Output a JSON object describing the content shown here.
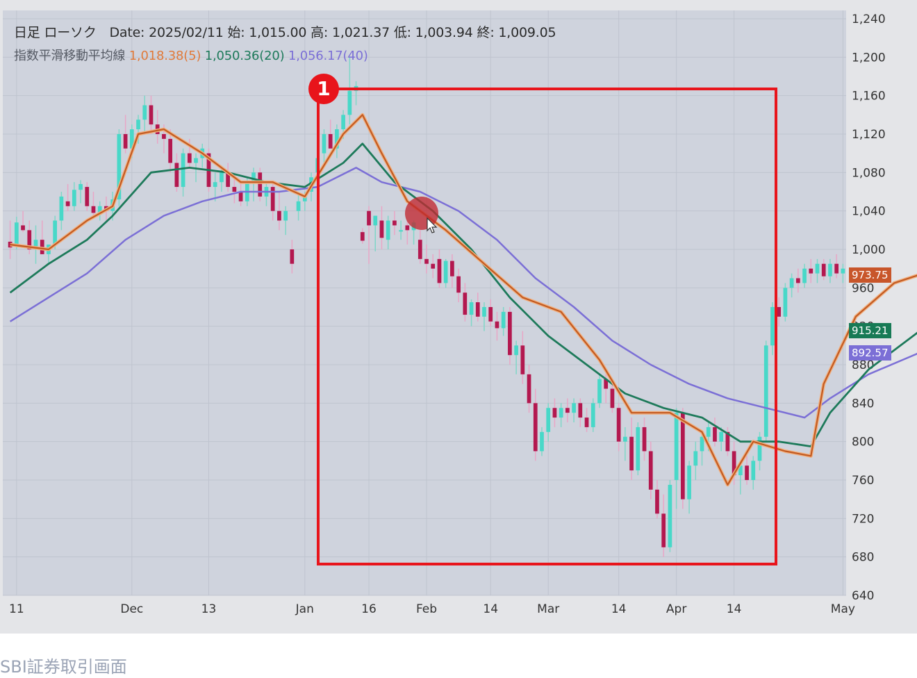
{
  "legend": {
    "line1": "日足 ローソク　Date: 2025/02/11 始: 1,015.00 高: 1,021.37 低: 1,003.94 終: 1,009.05",
    "ma_title": "指数平滑移動平均線",
    "ma5": "1,018.38(5)",
    "ma20": "1,050.36(20)",
    "ma40": "1,056.17(40)"
  },
  "badges": {
    "ma5_last": "973.75",
    "ma20_last": "915.21",
    "ma40_last": "892.57"
  },
  "annotation": {
    "number": "1"
  },
  "caption": "SBI証券取引画面",
  "colors": {
    "ma5": "#e07a3a",
    "ma20": "#1d7a5a",
    "ma40": "#7b6fd6",
    "up": "#48d8c8",
    "down": "#b3184f",
    "highlight": "#e8141b"
  },
  "chart_data": {
    "type": "candlestick",
    "ylim": [
      640,
      1240
    ],
    "y_ticks": [
      "1,240",
      "1,200",
      "1,160",
      "1,120",
      "1,080",
      "1,040",
      "1,000",
      "960",
      "920",
      "880",
      "840",
      "800",
      "760",
      "720",
      "680",
      "640"
    ],
    "x_ticks": [
      "11",
      "Dec",
      "13",
      "Jan",
      "16",
      "Feb",
      "14",
      "Mar",
      "14",
      "Apr",
      "14",
      "May"
    ],
    "ohlc": [
      [
        1008,
        1030,
        990,
        1002
      ],
      [
        1005,
        1034,
        1000,
        1028
      ],
      [
        1025,
        1040,
        1018,
        1020
      ],
      [
        1020,
        1030,
        995,
        1000
      ],
      [
        1002,
        1025,
        985,
        1010
      ],
      [
        1010,
        1030,
        995,
        995
      ],
      [
        995,
        1005,
        985,
        1005
      ],
      [
        1005,
        1035,
        1000,
        1030
      ],
      [
        1030,
        1060,
        1020,
        1055
      ],
      [
        1050,
        1068,
        1040,
        1045
      ],
      [
        1045,
        1070,
        1040,
        1062
      ],
      [
        1062,
        1072,
        1048,
        1068
      ],
      [
        1065,
        1070,
        1040,
        1045
      ],
      [
        1045,
        1060,
        1035,
        1038
      ],
      [
        1038,
        1050,
        1030,
        1045
      ],
      [
        1045,
        1055,
        1030,
        1040
      ],
      [
        1040,
        1060,
        1030,
        1052
      ],
      [
        1052,
        1125,
        1045,
        1120
      ],
      [
        1120,
        1140,
        1100,
        1105
      ],
      [
        1105,
        1130,
        1095,
        1125
      ],
      [
        1125,
        1140,
        1110,
        1135
      ],
      [
        1135,
        1160,
        1120,
        1150
      ],
      [
        1150,
        1160,
        1120,
        1130
      ],
      [
        1130,
        1145,
        1110,
        1120
      ],
      [
        1120,
        1130,
        1100,
        1115
      ],
      [
        1115,
        1125,
        1080,
        1090
      ],
      [
        1090,
        1100,
        1060,
        1065
      ],
      [
        1065,
        1105,
        1055,
        1100
      ],
      [
        1100,
        1115,
        1085,
        1090
      ],
      [
        1090,
        1100,
        1070,
        1095
      ],
      [
        1095,
        1110,
        1085,
        1105
      ],
      [
        1100,
        1105,
        1060,
        1065
      ],
      [
        1065,
        1080,
        1050,
        1070
      ],
      [
        1070,
        1085,
        1060,
        1080
      ],
      [
        1080,
        1090,
        1060,
        1065
      ],
      [
        1065,
        1075,
        1048,
        1060
      ],
      [
        1060,
        1072,
        1045,
        1050
      ],
      [
        1050,
        1075,
        1045,
        1070
      ],
      [
        1070,
        1085,
        1050,
        1080
      ],
      [
        1080,
        1085,
        1050,
        1055
      ],
      [
        1055,
        1070,
        1045,
        1065
      ],
      [
        1065,
        1070,
        1030,
        1040
      ],
      [
        1040,
        1060,
        1020,
        1030
      ],
      [
        1030,
        1045,
        1015,
        1040
      ],
      [
        1000,
        1010,
        975,
        985
      ],
      [
        1040,
        1060,
        1030,
        1050
      ],
      [
        1050,
        1060,
        1040,
        1055
      ],
      [
        1060,
        1080,
        1050,
        1075
      ],
      [
        1080,
        1100,
        1070,
        1095
      ],
      [
        1100,
        1125,
        1090,
        1120
      ],
      [
        1120,
        1135,
        1110,
        1105
      ],
      [
        1105,
        1130,
        1095,
        1125
      ],
      [
        1125,
        1145,
        1115,
        1140
      ],
      [
        1140,
        1200,
        1130,
        1165
      ],
      [
        1165,
        1175,
        1150,
        1170
      ],
      [
        1018,
        1022,
        1006,
        1009
      ],
      [
        1040,
        1045,
        985,
        1025
      ],
      [
        1025,
        1035,
        998,
        1035
      ],
      [
        1030,
        1045,
        1000,
        1012
      ],
      [
        1010,
        1035,
        1000,
        1030
      ],
      [
        1030,
        1040,
        1015,
        1025
      ],
      [
        1020,
        1030,
        1010,
        1020
      ],
      [
        1025,
        1030,
        1005,
        1020
      ],
      [
        1020,
        1030,
        1005,
        1028
      ],
      [
        1010,
        1020,
        985,
        990
      ],
      [
        990,
        1005,
        975,
        985
      ],
      [
        985,
        995,
        970,
        980
      ],
      [
        990,
        1000,
        960,
        965
      ],
      [
        965,
        990,
        960,
        988
      ],
      [
        988,
        995,
        960,
        972
      ],
      [
        972,
        980,
        945,
        955
      ],
      [
        955,
        965,
        925,
        932
      ],
      [
        932,
        948,
        920,
        945
      ],
      [
        945,
        955,
        925,
        930
      ],
      [
        930,
        945,
        915,
        940
      ],
      [
        940,
        948,
        920,
        925
      ],
      [
        925,
        935,
        905,
        918
      ],
      [
        918,
        940,
        910,
        935
      ],
      [
        935,
        940,
        880,
        890
      ],
      [
        890,
        905,
        870,
        900
      ],
      [
        900,
        915,
        860,
        870
      ],
      [
        870,
        880,
        830,
        840
      ],
      [
        840,
        855,
        780,
        790
      ],
      [
        790,
        815,
        785,
        810
      ],
      [
        810,
        840,
        800,
        835
      ],
      [
        835,
        845,
        815,
        825
      ],
      [
        825,
        840,
        815,
        835
      ],
      [
        835,
        845,
        820,
        830
      ],
      [
        830,
        845,
        820,
        840
      ],
      [
        840,
        845,
        815,
        825
      ],
      [
        825,
        835,
        810,
        815
      ],
      [
        815,
        845,
        810,
        840
      ],
      [
        840,
        870,
        835,
        865
      ],
      [
        865,
        870,
        840,
        855
      ],
      [
        855,
        860,
        830,
        835
      ],
      [
        835,
        840,
        790,
        800
      ],
      [
        800,
        815,
        780,
        805
      ],
      [
        805,
        825,
        760,
        770
      ],
      [
        770,
        820,
        765,
        815
      ],
      [
        815,
        825,
        780,
        790
      ],
      [
        790,
        800,
        740,
        750
      ],
      [
        750,
        760,
        720,
        725
      ],
      [
        725,
        745,
        680,
        690
      ],
      [
        690,
        760,
        685,
        755
      ],
      [
        760,
        835,
        730,
        830
      ],
      [
        830,
        835,
        730,
        740
      ],
      [
        740,
        780,
        725,
        775
      ],
      [
        775,
        800,
        760,
        790
      ],
      [
        790,
        810,
        775,
        805
      ],
      [
        805,
        820,
        790,
        815
      ],
      [
        815,
        825,
        795,
        800
      ],
      [
        800,
        815,
        790,
        810
      ],
      [
        810,
        815,
        785,
        790
      ],
      [
        790,
        800,
        755,
        765
      ],
      [
        765,
        780,
        745,
        775
      ],
      [
        775,
        785,
        755,
        760
      ],
      [
        760,
        785,
        750,
        780
      ],
      [
        780,
        810,
        770,
        805
      ],
      [
        805,
        905,
        800,
        900
      ],
      [
        900,
        945,
        890,
        940
      ],
      [
        940,
        950,
        920,
        930
      ],
      [
        930,
        965,
        925,
        960
      ],
      [
        960,
        975,
        950,
        970
      ],
      [
        970,
        980,
        955,
        965
      ],
      [
        965,
        985,
        960,
        980
      ],
      [
        980,
        990,
        965,
        975
      ],
      [
        975,
        990,
        965,
        985
      ],
      [
        985,
        990,
        968,
        972
      ],
      [
        972,
        990,
        965,
        985
      ],
      [
        985,
        995,
        970,
        975
      ],
      [
        975,
        985,
        965,
        980
      ]
    ],
    "ema5": [
      [
        0,
        1005
      ],
      [
        6,
        1000
      ],
      [
        12,
        1030
      ],
      [
        16,
        1045
      ],
      [
        20,
        1120
      ],
      [
        24,
        1125
      ],
      [
        30,
        1100
      ],
      [
        36,
        1070
      ],
      [
        41,
        1070
      ],
      [
        46,
        1055
      ],
      [
        52,
        1120
      ],
      [
        55,
        1140
      ],
      [
        58,
        1100
      ],
      [
        62,
        1050
      ],
      [
        68,
        1020
      ],
      [
        74,
        985
      ],
      [
        80,
        950
      ],
      [
        86,
        935
      ],
      [
        92,
        885
      ],
      [
        97,
        830
      ],
      [
        103,
        830
      ],
      [
        108,
        810
      ],
      [
        112,
        755
      ],
      [
        116,
        800
      ],
      [
        121,
        790
      ],
      [
        125,
        785
      ],
      [
        127,
        860
      ],
      [
        132,
        930
      ],
      [
        138,
        965
      ],
      [
        142,
        973.75
      ]
    ],
    "ema20": [
      [
        0,
        955
      ],
      [
        6,
        985
      ],
      [
        12,
        1010
      ],
      [
        16,
        1035
      ],
      [
        22,
        1080
      ],
      [
        28,
        1085
      ],
      [
        34,
        1080
      ],
      [
        40,
        1070
      ],
      [
        46,
        1065
      ],
      [
        52,
        1090
      ],
      [
        55,
        1110
      ],
      [
        60,
        1070
      ],
      [
        66,
        1040
      ],
      [
        72,
        1000
      ],
      [
        78,
        950
      ],
      [
        84,
        910
      ],
      [
        90,
        880
      ],
      [
        96,
        850
      ],
      [
        102,
        835
      ],
      [
        108,
        825
      ],
      [
        114,
        800
      ],
      [
        120,
        800
      ],
      [
        125,
        795
      ],
      [
        128,
        830
      ],
      [
        134,
        875
      ],
      [
        142,
        915.21
      ]
    ],
    "ema40": [
      [
        0,
        925
      ],
      [
        6,
        950
      ],
      [
        12,
        975
      ],
      [
        18,
        1010
      ],
      [
        24,
        1035
      ],
      [
        30,
        1050
      ],
      [
        36,
        1060
      ],
      [
        42,
        1060
      ],
      [
        48,
        1065
      ],
      [
        54,
        1085
      ],
      [
        58,
        1070
      ],
      [
        64,
        1060
      ],
      [
        70,
        1040
      ],
      [
        76,
        1010
      ],
      [
        82,
        970
      ],
      [
        88,
        940
      ],
      [
        94,
        905
      ],
      [
        100,
        880
      ],
      [
        106,
        860
      ],
      [
        112,
        845
      ],
      [
        118,
        835
      ],
      [
        124,
        825
      ],
      [
        128,
        845
      ],
      [
        134,
        870
      ],
      [
        142,
        892.57
      ]
    ]
  }
}
